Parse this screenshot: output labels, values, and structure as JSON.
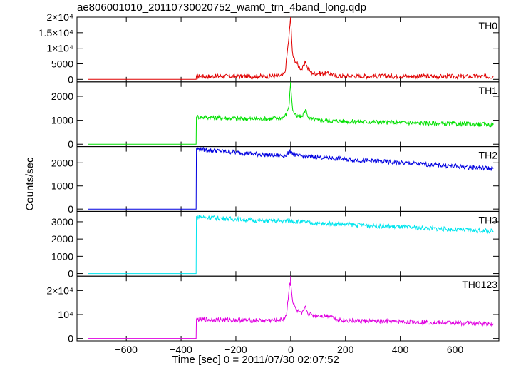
{
  "title": "ae806001010_20110730020752_wam0_trn_4band_long.qdp",
  "xlabel": "Time [sec] 0 = 2011/07/30 02:07:52",
  "ylabel": "Counts/sec",
  "x_tick_labels": [
    "−600",
    "−400",
    "−200",
    "0",
    "200",
    "400",
    "600"
  ],
  "chart_data": [
    {
      "type": "line",
      "name": "TH0",
      "color": "#e00000",
      "xlim": [
        -780,
        760
      ],
      "ylim": [
        -800,
        20000
      ],
      "yticks": [
        0,
        5000,
        10000,
        15000,
        20000
      ],
      "ytick_labels": [
        "0",
        "5000",
        "1×10⁴",
        "1.5×10⁴",
        "2×10⁴"
      ],
      "x": [
        -740,
        -345,
        -344,
        -100,
        -30,
        -20,
        -12,
        -6,
        -3,
        -1,
        0,
        3,
        6,
        10,
        20,
        30,
        40,
        50,
        55,
        60,
        70,
        80,
        100,
        130,
        150,
        160,
        200,
        400,
        600,
        740
      ],
      "y": [
        0,
        0,
        1000,
        1000,
        1100,
        2500,
        9000,
        14000,
        17000,
        19500,
        20000,
        14000,
        9000,
        7000,
        5500,
        4200,
        3200,
        4500,
        5800,
        4000,
        2600,
        2000,
        1900,
        1900,
        1800,
        1100,
        1050,
        1000,
        950,
        900
      ]
    },
    {
      "type": "line",
      "name": "TH1",
      "color": "#00e000",
      "xlim": [
        -780,
        760
      ],
      "ylim": [
        -100,
        2600
      ],
      "yticks": [
        0,
        1000,
        2000
      ],
      "ytick_labels": [
        "0",
        "1000",
        "2000"
      ],
      "x": [
        -740,
        -345,
        -344,
        -300,
        -200,
        -100,
        -30,
        -15,
        -5,
        -2,
        0,
        3,
        8,
        20,
        40,
        55,
        60,
        70,
        100,
        200,
        400,
        600,
        740
      ],
      "y": [
        0,
        0,
        1150,
        1120,
        1080,
        1050,
        1100,
        1250,
        1700,
        2300,
        2600,
        2000,
        1400,
        1150,
        1150,
        1450,
        1250,
        1050,
        1000,
        960,
        900,
        850,
        820
      ]
    },
    {
      "type": "line",
      "name": "TH2",
      "color": "#0000e0",
      "xlim": [
        -780,
        760
      ],
      "ylim": [
        -100,
        2700
      ],
      "yticks": [
        0,
        1000,
        2000
      ],
      "ytick_labels": [
        "0",
        "1000",
        "2000"
      ],
      "x": [
        -740,
        -345,
        -344,
        -300,
        -200,
        -100,
        -20,
        0,
        20,
        100,
        200,
        400,
        600,
        740
      ],
      "y": [
        0,
        0,
        2600,
        2550,
        2450,
        2350,
        2300,
        2500,
        2300,
        2250,
        2150,
        2000,
        1850,
        1750
      ]
    },
    {
      "type": "line",
      "name": "TH3",
      "color": "#00e5ee",
      "xlim": [
        -780,
        760
      ],
      "ylim": [
        -150,
        3600
      ],
      "yticks": [
        0,
        1000,
        2000,
        3000
      ],
      "ytick_labels": [
        "0",
        "1000",
        "2000",
        "3000"
      ],
      "x": [
        -740,
        -345,
        -344,
        -300,
        -200,
        -100,
        0,
        100,
        200,
        400,
        600,
        740
      ],
      "y": [
        0,
        0,
        3300,
        3250,
        3150,
        3050,
        3050,
        2900,
        2850,
        2700,
        2550,
        2450
      ]
    },
    {
      "type": "line",
      "name": "TH0123",
      "color": "#e000e0",
      "xlim": [
        -780,
        760
      ],
      "ylim": [
        -1000,
        26000
      ],
      "yticks": [
        0,
        10000,
        20000
      ],
      "ytick_labels": [
        "0",
        "10⁴",
        "2×10⁴"
      ],
      "x": [
        -740,
        -345,
        -344,
        -100,
        -30,
        -15,
        -8,
        -4,
        -1,
        0,
        3,
        8,
        20,
        40,
        55,
        62,
        80,
        100,
        150,
        160,
        200,
        400,
        600,
        740
      ],
      "y": [
        0,
        0,
        8000,
        7500,
        7800,
        10000,
        18000,
        23000,
        22000,
        26000,
        20000,
        15000,
        12000,
        10000,
        13000,
        10500,
        9800,
        9500,
        9500,
        8200,
        7500,
        7000,
        6500,
        6200
      ]
    }
  ]
}
